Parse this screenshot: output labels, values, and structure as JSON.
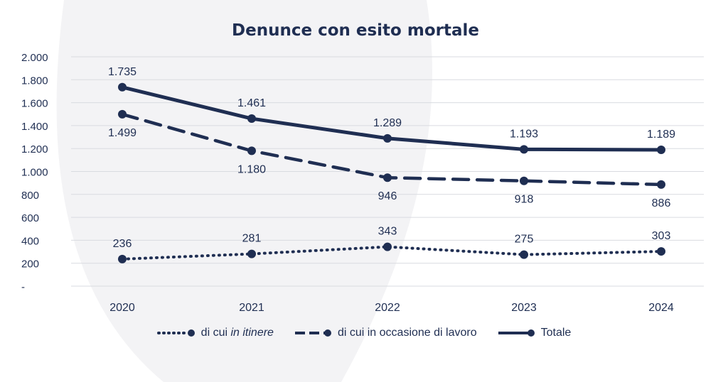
{
  "chart_data": {
    "type": "line",
    "title": "Denunce con esito mortale",
    "x": [
      "2020",
      "2021",
      "2022",
      "2023",
      "2024"
    ],
    "ylim": [
      0,
      2000
    ],
    "yticks": [
      "-",
      "200",
      "400",
      "600",
      "800",
      "1.000",
      "1.200",
      "1.400",
      "1.600",
      "1.800",
      "2.000"
    ],
    "ytick_values": [
      0,
      200,
      400,
      600,
      800,
      1000,
      1200,
      1400,
      1600,
      1800,
      2000
    ],
    "grid": true,
    "legend_position": "bottom",
    "series": [
      {
        "name_prefix": "di cui ",
        "name_italic": "in itinere",
        "style": "dotted",
        "values": [
          236,
          281,
          343,
          275,
          303
        ],
        "labels": [
          "236",
          "281",
          "343",
          "275",
          "303"
        ],
        "label_position": "above"
      },
      {
        "name": "di cui in occasione di lavoro",
        "style": "dashed",
        "values": [
          1499,
          1180,
          946,
          918,
          886
        ],
        "labels": [
          "1.499",
          "1.180",
          "946",
          "918",
          "886"
        ],
        "label_position": "below"
      },
      {
        "name": "Totale",
        "style": "solid",
        "values": [
          1735,
          1461,
          1289,
          1193,
          1189
        ],
        "labels": [
          "1.735",
          "1.461",
          "1.289",
          "1.193",
          "1.189"
        ],
        "label_position": "above"
      }
    ],
    "color": "#1f2e52",
    "grid_color": "#d9dbe0"
  }
}
